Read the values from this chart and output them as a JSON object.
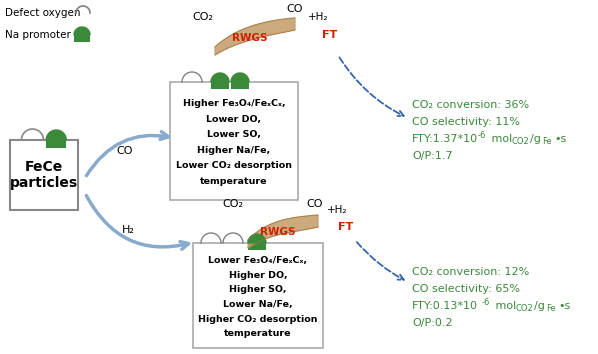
{
  "bg_color": "#ffffff",
  "green_color": "#3a8a3a",
  "dark_green": "#2d6e2d",
  "red_color": "#cc2200",
  "tan_color": "#c8a07a",
  "tan_dark": "#a07840",
  "blue_arrow": "#6699bb",
  "blue_dash": "#3366aa",
  "gray_edge": "#999999",
  "result_green": "#3a8a3a",
  "box1_text": [
    "Higher Fe₃O₄/FeₓCₓ,",
    "Lower DO,",
    "Lower SO,",
    "Higher Na/Fe,",
    "Lower CO₂ desorption",
    "temperature"
  ],
  "box2_text": [
    "Lower Fe₃O₄/FeₓCₓ,",
    "Higher DO,",
    "Higher SO,",
    "Lower Na/Fe,",
    "Higher CO₂ desorption",
    "temperature"
  ],
  "fece_text": "FeCe\nparticles"
}
